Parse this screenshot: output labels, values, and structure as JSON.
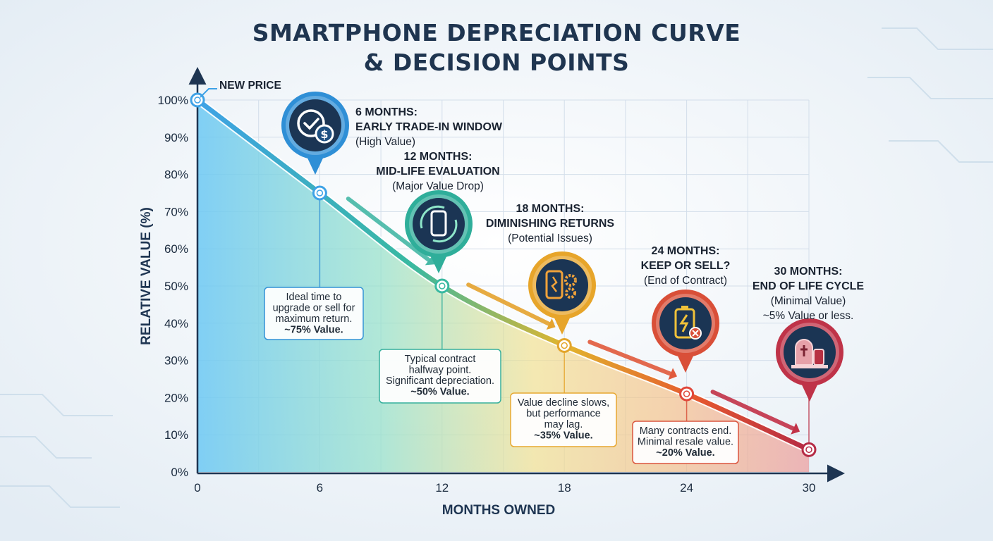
{
  "title_lines": [
    "SMARTPHONE DEPRECIATION CURVE",
    "& DECISION POINTS"
  ],
  "new_price_label": "NEW PRICE",
  "chart_data": {
    "type": "line",
    "title": "SMARTPHONE DEPRECIATION CURVE & DECISION POINTS",
    "xlabel": "MONTHS OWNED",
    "ylabel": "RELATIVE VALUE (%)",
    "xlim": [
      0,
      30
    ],
    "ylim": [
      0,
      100
    ],
    "x_ticks": [
      "0",
      "6",
      "12",
      "18",
      "24",
      "30"
    ],
    "y_ticks": [
      "0%",
      "10%",
      "20%",
      "30%",
      "40%",
      "50%",
      "60%",
      "70%",
      "80%",
      "90%",
      "100%"
    ],
    "grid": true,
    "x": [
      0,
      6,
      12,
      18,
      24,
      30
    ],
    "y": [
      100,
      75,
      50,
      34,
      21,
      6
    ]
  },
  "milestones": [
    {
      "month": 6,
      "icon": "money-check-icon",
      "color": "#2f8fd6",
      "title_lines": [
        "6 MONTHS:",
        "EARLY TRADE-IN WINDOW"
      ],
      "sub_lines": [
        "(High Value)"
      ],
      "box_lines": [
        "Ideal time to",
        "upgrade or sell for",
        "maximum return."
      ],
      "box_value": "~75% Value."
    },
    {
      "month": 12,
      "icon": "phone-cycle-icon",
      "color": "#2fae9a",
      "title_lines": [
        "12 MONTHS:",
        "MID-LIFE EVALUATION"
      ],
      "sub_lines": [
        "(Major Value Drop)"
      ],
      "box_lines": [
        "Typical contract",
        "halfway point.",
        "Significant depreciation."
      ],
      "box_value": "~50% Value."
    },
    {
      "month": 18,
      "icon": "broken-phone-gears-icon",
      "color": "#e7a52a",
      "title_lines": [
        "18 MONTHS:",
        "DIMINISHING RETURNS"
      ],
      "sub_lines": [
        "(Potential Issues)"
      ],
      "box_lines": [
        "Value decline slows,",
        "but performance",
        "may lag."
      ],
      "box_value": "~35% Value."
    },
    {
      "month": 24,
      "icon": "dead-battery-icon",
      "color": "#d94f38",
      "title_lines": [
        "24 MONTHS:",
        "KEEP OR SELL?"
      ],
      "sub_lines": [
        "(End of Contract)"
      ],
      "box_lines": [
        "Many contracts end.",
        "Minimal resale value."
      ],
      "box_value": "~20% Value."
    },
    {
      "month": 30,
      "icon": "tombstone-phone-icon",
      "color": "#bf3348",
      "title_lines": [
        "30 MONTHS:",
        "END OF LIFE CYCLE"
      ],
      "sub_lines": [
        "(Minimal Value)",
        "~5% Value or less."
      ],
      "box_lines": [],
      "box_value": ""
    }
  ]
}
